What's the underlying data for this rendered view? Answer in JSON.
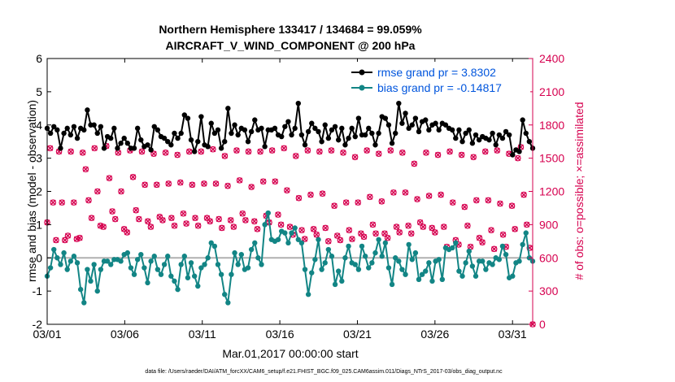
{
  "chart_data": {
    "type": "line",
    "title_line1": "Northern Hemisphere 133417 / 134684 = 99.059%",
    "title_line2": "AIRCRAFT_V_WIND_COMPONENT @ 200 hPa",
    "xlabel": "Mar.01,2017 00:00:00 start",
    "ylabel": "rmse and bias (model - observation)",
    "ylabel_right": "# of obs: o=possible; ×=assimilated",
    "footer": "data file: /Users/raeder/DAI/ATM_forcXX/CAM6_setup/f.e21.FHIST_BGC.f09_025.CAM6assim.011/Diags_NTrS_2017-03/obs_diag_output.nc",
    "x_tick_labels": [
      "03/01",
      "03/06",
      "03/11",
      "03/16",
      "03/21",
      "03/26",
      "03/31"
    ],
    "x_tick_days": [
      1,
      6,
      11,
      16,
      21,
      26,
      31
    ],
    "xlim": [
      1,
      32.3
    ],
    "ylim": [
      -2,
      6
    ],
    "yticks": [
      "-2",
      "-1",
      "0",
      "1",
      "2",
      "3",
      "4",
      "5",
      "6"
    ],
    "ylim_right": [
      0,
      2400
    ],
    "yticks_right": [
      "0",
      "300",
      "600",
      "900",
      "1200",
      "1500",
      "1800",
      "2100",
      "2400"
    ],
    "series": [
      {
        "name": "rmse grand pr = 3.8302",
        "color": "#000000",
        "marker": "circle",
        "values": [
          3.9,
          3.75,
          3.95,
          3.85,
          3.3,
          3.75,
          3.9,
          3.7,
          3.95,
          3.6,
          3.9,
          3.85,
          4.45,
          4.0,
          4.0,
          3.75,
          3.95,
          3.3,
          3.65,
          3.6,
          3.9,
          3.3,
          3.45,
          3.6,
          3.45,
          3.3,
          3.3,
          3.9,
          3.55,
          3.35,
          3.4,
          3.25,
          3.95,
          3.85,
          3.65,
          3.6,
          3.5,
          3.4,
          3.75,
          3.6,
          3.75,
          4.3,
          4.2,
          3.55,
          3.2,
          3.5,
          4.25,
          3.4,
          3.35,
          4.05,
          3.75,
          3.85,
          3.3,
          3.5,
          4.5,
          3.75,
          4.0,
          3.7,
          3.9,
          3.85,
          3.5,
          3.8,
          4.15,
          3.85,
          3.9,
          3.35,
          3.85,
          3.85,
          3.9,
          3.7,
          3.65,
          3.95,
          4.1,
          3.7,
          3.9,
          4.65,
          3.7,
          3.4,
          3.8,
          4.05,
          3.9,
          3.8,
          3.5,
          4.0,
          3.6,
          3.85,
          3.95,
          3.55,
          3.9,
          3.4,
          3.6,
          3.9,
          3.65,
          4.2,
          3.7,
          3.7,
          3.9,
          3.75,
          3.4,
          3.75,
          4.25,
          4.2,
          4.0,
          3.45,
          3.75,
          4.65,
          4.05,
          4.35,
          3.9,
          4.0,
          4.2,
          3.8,
          4.1,
          4.15,
          3.85,
          4.0,
          4.05,
          3.85,
          4.05,
          4.0,
          3.9,
          3.85,
          3.6,
          3.85,
          3.5,
          3.75,
          3.85,
          3.45,
          3.7,
          3.55,
          3.65,
          3.6,
          3.55,
          3.75,
          3.4,
          3.7,
          3.6,
          3.8,
          3.7,
          3.1,
          3.25,
          3.2,
          4.15,
          3.75,
          3.5,
          3.3
        ]
      },
      {
        "name": "bias grand pr = -0.14817",
        "color": "#128585",
        "marker": "circle",
        "values": [
          -0.55,
          -0.3,
          0.25,
          0.0,
          -0.2,
          0.15,
          -0.35,
          -0.1,
          0.05,
          -0.15,
          -0.95,
          -1.35,
          -0.35,
          -0.7,
          -0.2,
          -1.0,
          -0.35,
          -0.1,
          -0.1,
          -0.2,
          -0.05,
          -0.05,
          -0.1,
          0.1,
          0.15,
          -0.3,
          -0.5,
          -0.05,
          0.1,
          -0.3,
          -0.75,
          -0.1,
          0.05,
          -0.35,
          -0.5,
          -0.2,
          0.05,
          -0.55,
          -0.7,
          -0.95,
          -0.2,
          0.05,
          -0.6,
          -0.15,
          -0.55,
          -0.85,
          -0.3,
          -0.2,
          0.0,
          0.45,
          0.35,
          -0.2,
          -0.5,
          -1.1,
          -1.35,
          -0.5,
          0.15,
          -0.2,
          0.1,
          -0.35,
          -0.3,
          0.25,
          0.45,
          0.0,
          -0.2,
          1.0,
          1.35,
          0.55,
          0.5,
          0.55,
          0.8,
          0.75,
          0.45,
          0.75,
          0.9,
          0.55,
          0.45,
          -0.35,
          -1.1,
          -0.45,
          -0.05,
          0.55,
          -0.35,
          -0.15,
          0.25,
          0.05,
          -0.8,
          -0.4,
          -0.7,
          0.0,
          0.35,
          -0.15,
          -0.2,
          -0.35,
          0.35,
          0.05,
          -0.3,
          -0.15,
          0.15,
          0.55,
          0.05,
          0.45,
          -0.3,
          -0.8,
          0.0,
          -0.1,
          -0.35,
          -0.5,
          0.4,
          -0.05,
          0.15,
          -0.65,
          -0.5,
          -0.4,
          -0.15,
          -0.7,
          -0.1,
          -0.05,
          -0.65,
          0.3,
          0.25,
          0.3,
          0.45,
          -0.4,
          -0.55,
          -0.15,
          0.2,
          -0.25,
          -0.55,
          -0.1,
          -0.1,
          -0.35,
          -0.15,
          -0.2,
          0.0,
          -0.05,
          0.35,
          0.1,
          -0.6,
          -0.55,
          -0.15,
          -0.1,
          0.4,
          0.75,
          0.0,
          -0.1
        ]
      },
      {
        "name": "# of obs possible",
        "color": "#d6004f",
        "marker": "o",
        "axis": "right",
        "values": [
          920,
          1590,
          1100,
          760,
          1560,
          1100,
          760,
          800,
          1560,
          1100,
          770,
          780,
          1550,
          1400,
          1120,
          960,
          1590,
          1200,
          890,
          880,
          1610,
          1320,
          1020,
          950,
          1550,
          1200,
          860,
          830,
          1570,
          1330,
          1030,
          950,
          1560,
          1260,
          930,
          880,
          1540,
          1260,
          970,
          940,
          1550,
          1270,
          960,
          890,
          1530,
          1280,
          1000,
          910,
          1560,
          1260,
          960,
          890,
          1560,
          1270,
          960,
          930,
          1580,
          1270,
          950,
          870,
          1520,
          1250,
          940,
          880,
          1570,
          1300,
          1000,
          940,
          1560,
          1240,
          930,
          860,
          1560,
          1290,
          980,
          920,
          1570,
          1290,
          990,
          900,
          1590,
          1210,
          880,
          810,
          1520,
          1140,
          850,
          770,
          1570,
          1170,
          860,
          810,
          1560,
          1180,
          870,
          750,
          1570,
          1070,
          800,
          760,
          1550,
          1100,
          850,
          770,
          1510,
          1100,
          820,
          790,
          1570,
          1150,
          900,
          820,
          1540,
          1110,
          820,
          780,
          1570,
          1190,
          880,
          830,
          1550,
          1190,
          890,
          820,
          1450,
          1130,
          920,
          880,
          1550,
          1160,
          870,
          830,
          1530,
          1170,
          880,
          700,
          1560,
          1100,
          760,
          720,
          1530,
          1060,
          890,
          700,
          1510,
          1120,
          780,
          740,
          1560,
          1120,
          850,
          680,
          1570,
          1090,
          810,
          700,
          1540,
          1070,
          860,
          1500,
          1600,
          1170,
          900,
          690,
          0
        ]
      },
      {
        "name": "# of obs assimilated",
        "color": "#d6004f",
        "marker": "x",
        "axis": "right",
        "values": [
          920,
          1590,
          1100,
          760,
          1560,
          1100,
          760,
          800,
          1560,
          1100,
          770,
          780,
          1550,
          1400,
          1120,
          960,
          1590,
          1200,
          890,
          880,
          1610,
          1320,
          1020,
          950,
          1550,
          1200,
          860,
          830,
          1570,
          1330,
          1030,
          950,
          1560,
          1260,
          930,
          880,
          1540,
          1260,
          970,
          940,
          1550,
          1270,
          960,
          890,
          1530,
          1280,
          1000,
          910,
          1560,
          1260,
          960,
          890,
          1560,
          1270,
          960,
          930,
          1580,
          1270,
          950,
          870,
          1520,
          1250,
          940,
          880,
          1570,
          1300,
          1000,
          940,
          1560,
          1240,
          930,
          860,
          1560,
          1290,
          980,
          920,
          1570,
          1290,
          990,
          900,
          1590,
          1210,
          880,
          810,
          1520,
          1140,
          850,
          770,
          1570,
          1170,
          860,
          810,
          1560,
          1180,
          870,
          750,
          1570,
          1070,
          800,
          760,
          1550,
          1100,
          850,
          770,
          1510,
          1100,
          820,
          790,
          1570,
          1150,
          900,
          820,
          1540,
          1110,
          820,
          780,
          1570,
          1190,
          880,
          830,
          1550,
          1190,
          890,
          820,
          1450,
          1130,
          920,
          880,
          1550,
          1160,
          870,
          830,
          1530,
          1170,
          880,
          700,
          1560,
          1100,
          760,
          720,
          1530,
          1060,
          890,
          700,
          1510,
          1120,
          780,
          740,
          1560,
          1120,
          850,
          680,
          1570,
          1090,
          810,
          700,
          1540,
          1070,
          860,
          1500,
          1600,
          1170,
          900,
          690,
          0
        ]
      }
    ],
    "zero_line_color": "#b0b0b0",
    "legend_location": "top-right"
  }
}
